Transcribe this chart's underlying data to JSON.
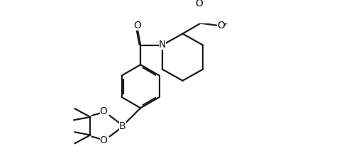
{
  "bg_color": "#ffffff",
  "line_color": "#1a1a1a",
  "line_width": 1.6,
  "dbo": 0.018,
  "font_size": 9.5,
  "fig_width": 4.88,
  "fig_height": 2.2,
  "dpi": 100,
  "xlim": [
    0,
    9.76
  ],
  "ylim": [
    0,
    4.4
  ]
}
